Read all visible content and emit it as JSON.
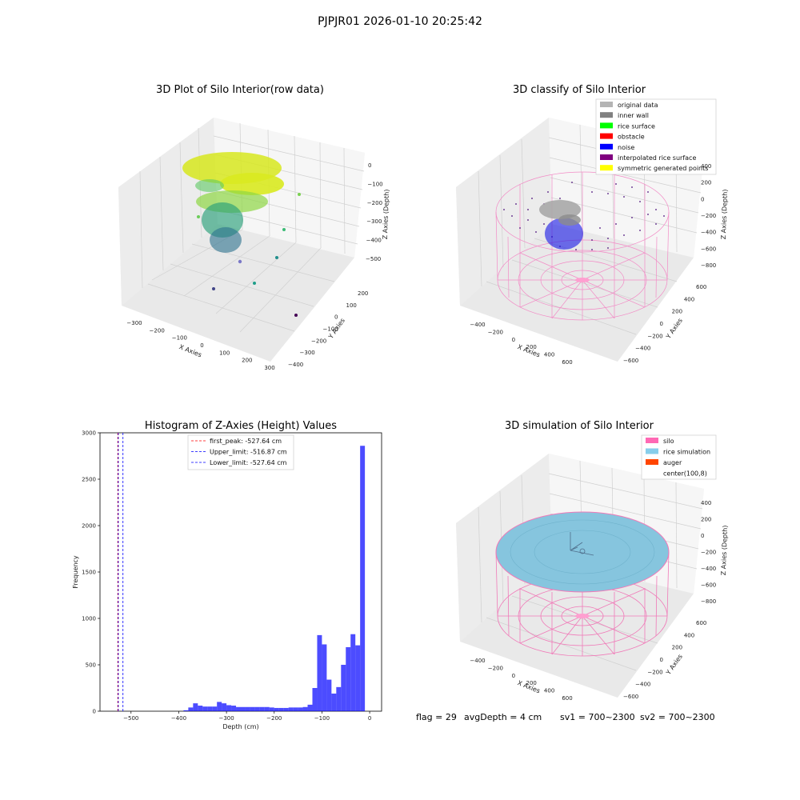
{
  "suptitle": "PJPJR01 2026-01-10 20:25:42",
  "footer": {
    "flag": "flag = 29",
    "avg_depth": "avgDepth = 4 cm",
    "sv1": "sv1 = 700~2300",
    "sv2": "sv2 = 700~2300"
  },
  "chart_data": [
    {
      "type": "scatter",
      "projection": "3d",
      "title": "3D Plot of Silo Interior(row data)",
      "xlabel": "X Axies",
      "ylabel": "Y Axies",
      "zlabel": "Z Axies (Depth)",
      "x_ticks": [
        "-300",
        "-200",
        "-100",
        "0",
        "100",
        "200",
        "300"
      ],
      "y_ticks": [
        "-400",
        "-300",
        "-200",
        "-100",
        "0",
        "100",
        "200"
      ],
      "z_ticks": [
        "0",
        "-100",
        "-200",
        "-300",
        "-400",
        "-500"
      ],
      "colormap": "viridis (by depth)"
    },
    {
      "type": "scatter",
      "projection": "3d",
      "title": "3D classify of Silo Interior",
      "xlabel": "X Axies",
      "ylabel": "Y Axies",
      "zlabel": "Z Axies (Depth)",
      "x_ticks": [
        "-400",
        "-200",
        "0",
        "200",
        "400",
        "600"
      ],
      "y_ticks": [
        "-600",
        "-400",
        "-200",
        "0",
        "200",
        "400",
        "600"
      ],
      "z_ticks": [
        "400",
        "200",
        "0",
        "-200",
        "-400",
        "-600",
        "-800"
      ],
      "legend": [
        {
          "label": "original data",
          "color": "#b4b4b4"
        },
        {
          "label": "inner wall",
          "color": "#808080"
        },
        {
          "label": "rice surface",
          "color": "#00ff00"
        },
        {
          "label": "obstacle",
          "color": "#ff0000"
        },
        {
          "label": "noise",
          "color": "#0000ff"
        },
        {
          "label": "interpolated rice surface",
          "color": "#800080"
        },
        {
          "label": "symmetric generated points",
          "color": "#ffff00"
        }
      ]
    },
    {
      "type": "bar",
      "title": "Histogram of Z-Axies (Height) Values",
      "xlabel": "Depth (cm)",
      "ylabel": "Frequency",
      "xlim": [
        -565,
        25
      ],
      "ylim": [
        0,
        3000
      ],
      "x_ticks": [
        -500,
        -400,
        -300,
        -200,
        -100,
        0
      ],
      "y_ticks": [
        0,
        500,
        1000,
        1500,
        2000,
        2500,
        3000
      ],
      "bin_width": 10,
      "bar_color": "#0000ff",
      "bins": [
        {
          "x": -390,
          "count": 10
        },
        {
          "x": -380,
          "count": 40
        },
        {
          "x": -370,
          "count": 85
        },
        {
          "x": -360,
          "count": 60
        },
        {
          "x": -350,
          "count": 50
        },
        {
          "x": -340,
          "count": 50
        },
        {
          "x": -330,
          "count": 50
        },
        {
          "x": -320,
          "count": 100
        },
        {
          "x": -310,
          "count": 85
        },
        {
          "x": -300,
          "count": 65
        },
        {
          "x": -290,
          "count": 60
        },
        {
          "x": -280,
          "count": 45
        },
        {
          "x": -270,
          "count": 45
        },
        {
          "x": -260,
          "count": 45
        },
        {
          "x": -250,
          "count": 45
        },
        {
          "x": -240,
          "count": 45
        },
        {
          "x": -230,
          "count": 45
        },
        {
          "x": -220,
          "count": 45
        },
        {
          "x": -210,
          "count": 40
        },
        {
          "x": -200,
          "count": 35
        },
        {
          "x": -190,
          "count": 35
        },
        {
          "x": -180,
          "count": 35
        },
        {
          "x": -170,
          "count": 40
        },
        {
          "x": -160,
          "count": 40
        },
        {
          "x": -150,
          "count": 40
        },
        {
          "x": -140,
          "count": 45
        },
        {
          "x": -130,
          "count": 70
        },
        {
          "x": -120,
          "count": 250
        },
        {
          "x": -110,
          "count": 820
        },
        {
          "x": -100,
          "count": 720
        },
        {
          "x": -90,
          "count": 340
        },
        {
          "x": -80,
          "count": 190
        },
        {
          "x": -70,
          "count": 260
        },
        {
          "x": -60,
          "count": 500
        },
        {
          "x": -50,
          "count": 690
        },
        {
          "x": -40,
          "count": 830
        },
        {
          "x": -30,
          "count": 710
        },
        {
          "x": -20,
          "count": 2860
        }
      ],
      "vlines": [
        {
          "label": "first_peak: -527.64 cm",
          "x": -527.64,
          "color": "#ff0000"
        },
        {
          "label": "Upper_limit: -516.87 cm",
          "x": -516.87,
          "color": "#0000ff"
        },
        {
          "label": "Lower_limit: -527.64 cm",
          "x": -527.64,
          "color": "#0000ff"
        }
      ]
    },
    {
      "type": "scatter",
      "projection": "3d",
      "title": "3D simulation of Silo Interior",
      "xlabel": "X Axies",
      "ylabel": "Y Axies",
      "zlabel": "Z Axies (Depth)",
      "x_ticks": [
        "-400",
        "-200",
        "0",
        "200",
        "400",
        "600"
      ],
      "y_ticks": [
        "-600",
        "-400",
        "-200",
        "0",
        "200",
        "400",
        "600"
      ],
      "z_ticks": [
        "400",
        "200",
        "0",
        "-200",
        "-400",
        "-600",
        "-800"
      ],
      "legend": [
        {
          "label": "silo",
          "color": "#ff69b4"
        },
        {
          "label": "rice simulation",
          "color": "#87ceeb"
        },
        {
          "label": "auger",
          "color": "#ff4500"
        },
        {
          "label": "center(100,8)",
          "color": "#ffffff"
        }
      ]
    }
  ]
}
